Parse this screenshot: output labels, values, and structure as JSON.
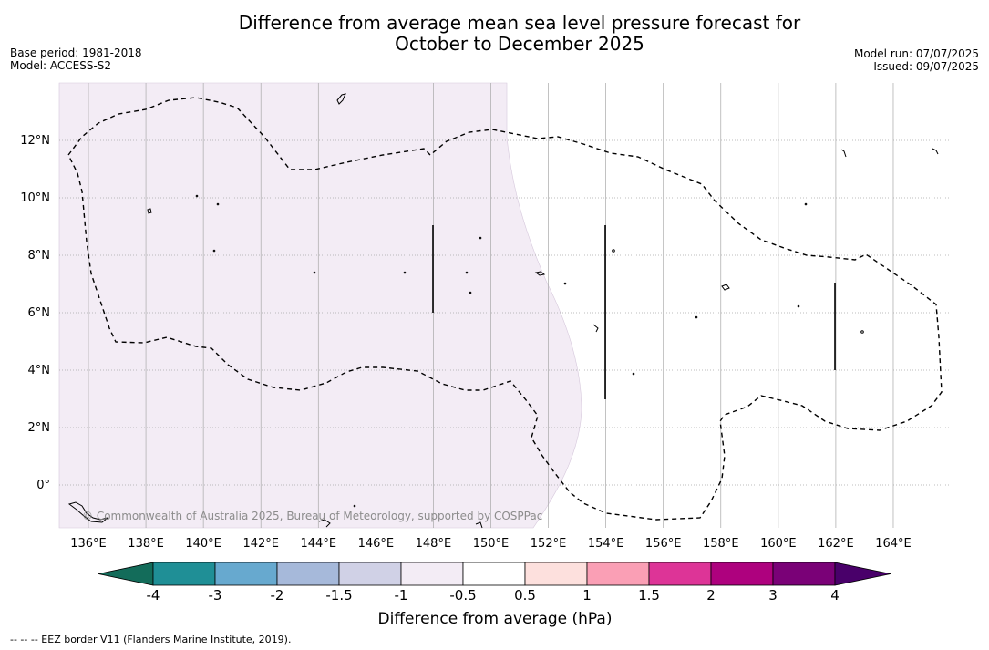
{
  "title": {
    "line1": "Difference from average mean sea level pressure forecast for",
    "line2": "October to December 2025"
  },
  "meta_left": {
    "base_period": "Base period: 1981-2018",
    "model": "Model: ACCESS-S2"
  },
  "meta_right": {
    "model_run": "Model run: 07/07/2025",
    "issued": "Issued: 09/07/2025"
  },
  "map": {
    "lon_labels": [
      "136°E",
      "138°E",
      "140°E",
      "142°E",
      "144°E",
      "146°E",
      "148°E",
      "150°E",
      "152°E",
      "154°E",
      "156°E",
      "158°E",
      "160°E",
      "162°E",
      "164°E"
    ],
    "lat_labels": [
      "12°N",
      "10°N",
      "8°N",
      "6°N",
      "4°N",
      "2°N",
      "0°"
    ],
    "copyright": "© Commonwealth of Australia 2025, Bureau of Meteorology, supported by COSPPac",
    "shaded_region_class": "-1 to -0.5",
    "shaded_region_color": "#f3ecf5"
  },
  "colorbar": {
    "label": "Difference from average (hPa)",
    "ticks": [
      "-4",
      "-3",
      "-2",
      "-1.5",
      "-1",
      "-0.5",
      "0.5",
      "1",
      "1.5",
      "2",
      "3",
      "4"
    ],
    "colors": [
      "#136c5a",
      "#1f8f96",
      "#67a9cf",
      "#a6b9da",
      "#d0d1e6",
      "#f3ecf5",
      "#ffffff",
      "#fde0dd",
      "#fa9fb5",
      "#dd3497",
      "#ae017e",
      "#7a0177",
      "#49006a"
    ]
  },
  "footer": {
    "legend_line": "--  --  -- EEZ border V11 (Flanders Marine Institute, 2019)."
  }
}
